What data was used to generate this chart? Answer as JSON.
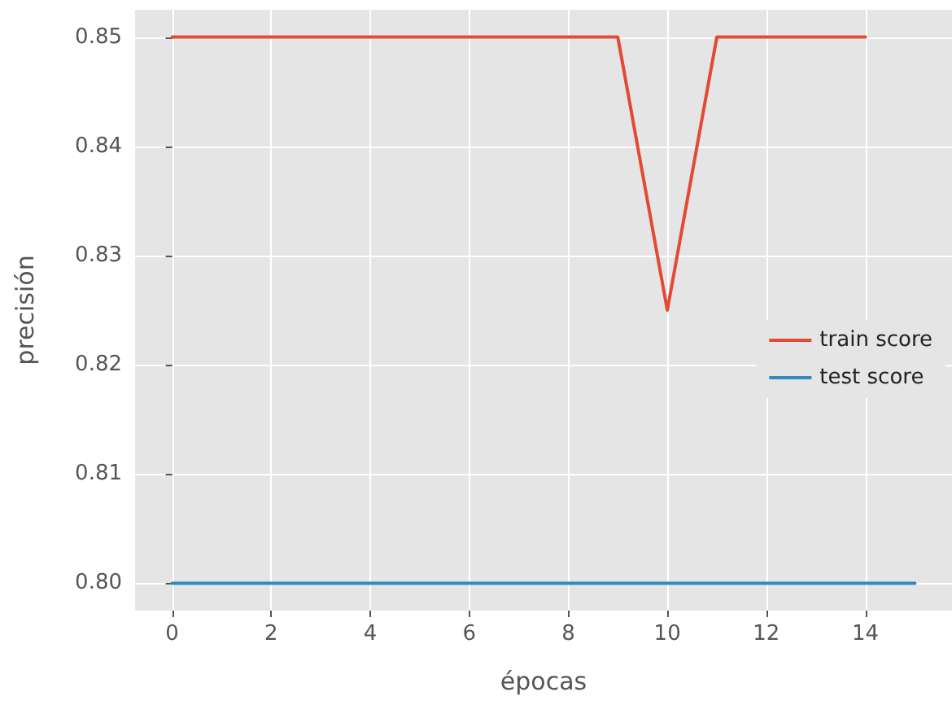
{
  "chart_data": {
    "type": "line",
    "xlabel": "épocas",
    "ylabel": "precisión",
    "series": [
      {
        "name": "train score",
        "color": "#e24a33",
        "x": [
          0,
          1,
          2,
          3,
          4,
          5,
          6,
          7,
          8,
          9,
          10,
          11,
          12,
          13,
          14
        ],
        "values": [
          0.85,
          0.85,
          0.85,
          0.85,
          0.85,
          0.85,
          0.85,
          0.85,
          0.85,
          0.85,
          0.825,
          0.85,
          0.85,
          0.85,
          0.85
        ]
      },
      {
        "name": "test score",
        "color": "#348abd",
        "x": [
          0,
          1,
          2,
          3,
          4,
          5,
          6,
          7,
          8,
          9,
          10,
          11,
          12,
          13,
          14,
          15
        ],
        "values": [
          0.8,
          0.8,
          0.8,
          0.8,
          0.8,
          0.8,
          0.8,
          0.8,
          0.8,
          0.8,
          0.8,
          0.8,
          0.8,
          0.8,
          0.8,
          0.8
        ]
      }
    ],
    "xlim": [
      -0.75,
      15.75
    ],
    "xticks": [
      0,
      2,
      4,
      6,
      8,
      10,
      12,
      14
    ],
    "ylim": [
      0.7975,
      0.8525
    ],
    "yticks": [
      {
        "value": 0.8,
        "label": "0.80"
      },
      0.81,
      0.82,
      0.83,
      0.84,
      0.85
    ],
    "grid": true,
    "legend": "right",
    "marker": "none",
    "line_style": "solid"
  }
}
